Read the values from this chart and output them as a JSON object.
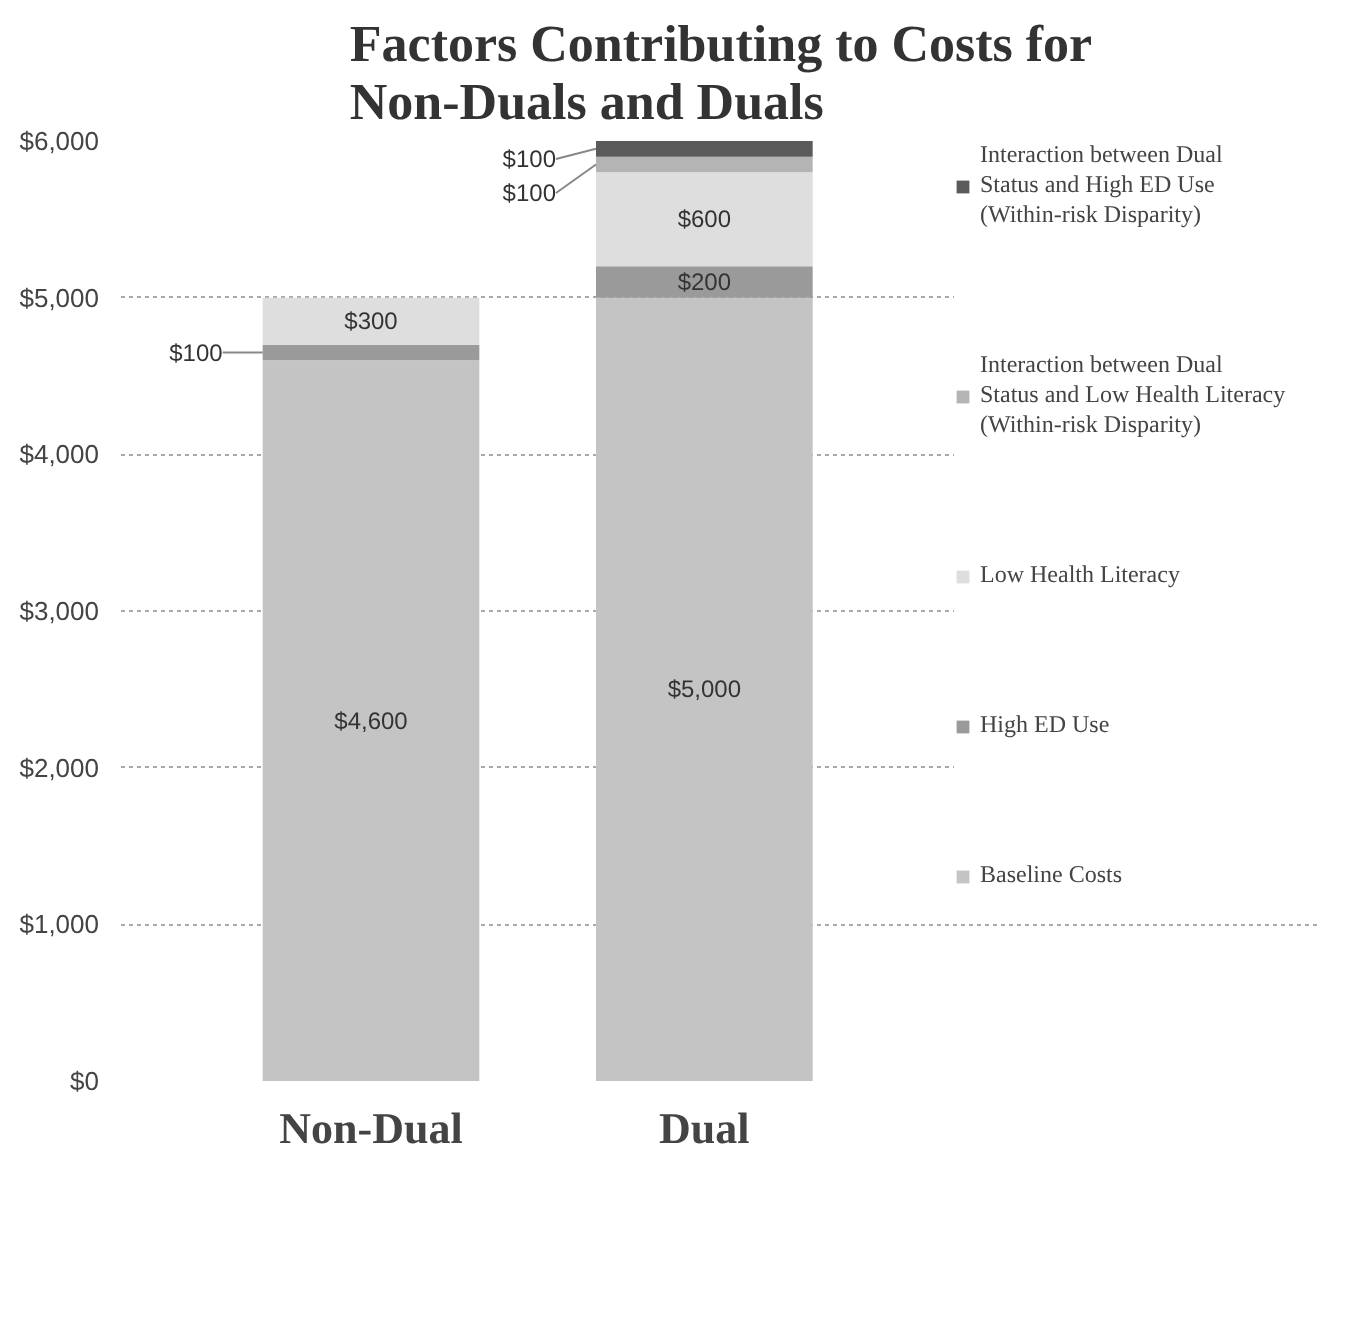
{
  "chart_data": {
    "type": "bar",
    "title": "Factors Contributing to Costs for Non-Duals and Duals",
    "stacked": true,
    "categories": [
      "Non-Dual",
      "Dual"
    ],
    "series": [
      {
        "name": "Baseline Costs",
        "color": "#c4c4c4",
        "values": [
          4600,
          5000
        ],
        "value_labels": [
          "$4,600",
          "$5,000"
        ]
      },
      {
        "name": "High ED Use",
        "color": "#9a9a9a",
        "values": [
          100,
          200
        ],
        "value_labels": [
          "$100",
          "$200"
        ]
      },
      {
        "name": "Low Health Literacy",
        "color": "#dedede",
        "values": [
          300,
          600
        ],
        "value_labels": [
          "$300",
          "$600"
        ]
      },
      {
        "name": "Interaction between Dual Status and Low Health Literacy (Within-risk Disparity)",
        "color": "#b4b4b4",
        "values": [
          0,
          100
        ],
        "value_labels": [
          null,
          "$100"
        ]
      },
      {
        "name": "Interaction between Dual Status and High ED Use (Within-risk Disparity)",
        "color": "#5a5a5a",
        "values": [
          0,
          100
        ],
        "value_labels": [
          null,
          "$100"
        ]
      }
    ],
    "ylim": [
      0,
      6000
    ],
    "yticks": [
      {
        "value": 0,
        "label": "$0"
      },
      {
        "value": 1000,
        "label": "$1,000"
      },
      {
        "value": 2000,
        "label": "$2,000"
      },
      {
        "value": 3000,
        "label": "$3,000"
      },
      {
        "value": 4000,
        "label": "$4,000"
      },
      {
        "value": 5000,
        "label": "$5,000"
      },
      {
        "value": 6000,
        "label": "$6,000"
      }
    ],
    "grid": "y",
    "legend": "right"
  }
}
